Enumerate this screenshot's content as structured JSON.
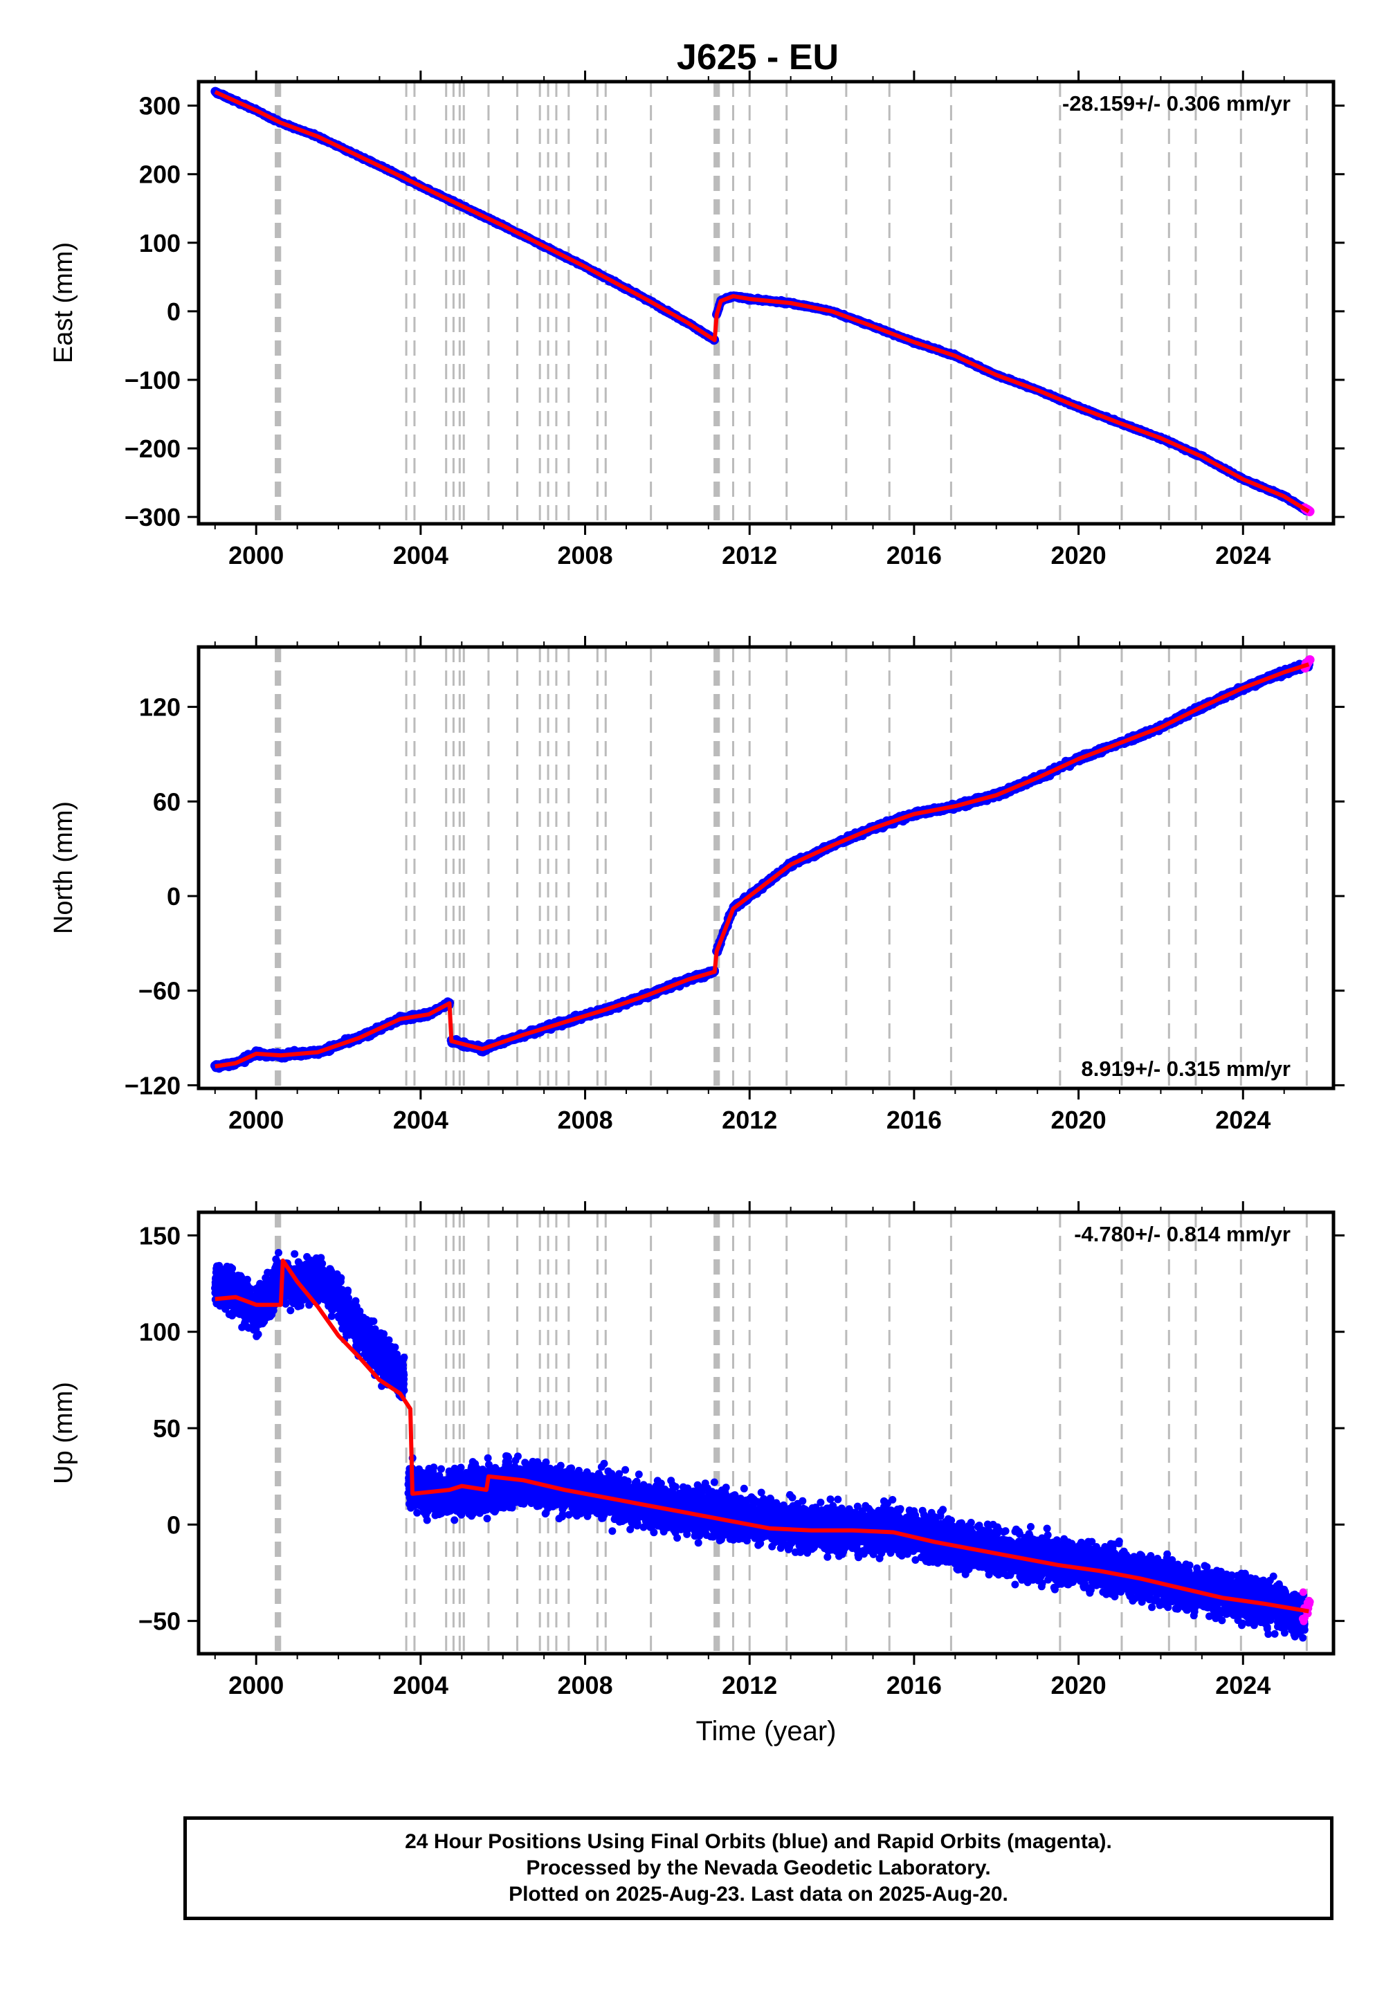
{
  "title": "J625 - EU",
  "footer": {
    "line1": "24 Hour Positions Using Final Orbits (blue) and Rapid Orbits (magenta).",
    "line2": "Processed by the Nevada Geodetic Laboratory.",
    "line3": "Plotted on 2025-Aug-23. Last data on 2025-Aug-20."
  },
  "colors": {
    "final_orbits": "#0000ff",
    "rapid_orbits": "#ff00ff",
    "model": "#ff0000",
    "event_lines": "#bbbbbb"
  },
  "chart_data": [
    {
      "type": "scatter",
      "ylabel": "East (mm)",
      "xlabel": "",
      "rate_label": "-28.159+/- 0.306 mm/yr",
      "rate_position": "top-right",
      "xlim": [
        1998.6,
        2026.2
      ],
      "ylim": [
        -310,
        335
      ],
      "x_ticks": [
        2000,
        2004,
        2008,
        2012,
        2016,
        2020,
        2024
      ],
      "y_ticks": [
        300,
        200,
        100,
        0,
        -100,
        -200,
        -300
      ],
      "y_tick_labels": [
        "300",
        "200",
        "100",
        "0",
        "−100",
        "−200",
        "−300"
      ],
      "series": [
        {
          "role": "final",
          "x": [
            1999.0,
            2000.0,
            2000.6,
            2001.5,
            2003.0,
            2004.5,
            2006.0,
            2008.0,
            2009.5,
            2010.5,
            2011.15
          ],
          "y": [
            320,
            293,
            275,
            255,
            212,
            168,
            125,
            65,
            17,
            -17,
            -42
          ]
        },
        {
          "role": "final",
          "x": [
            2011.2,
            2011.3,
            2011.6,
            2012.0,
            2013.0,
            2014.0,
            2015.0,
            2016.0,
            2017.0,
            2018.0,
            2019.0,
            2020.0,
            2021.0,
            2022.0,
            2023.0,
            2024.0,
            2025.0,
            2025.6
          ],
          "y": [
            -5,
            15,
            22,
            18,
            12,
            0,
            -22,
            -45,
            -65,
            -93,
            -115,
            -140,
            -163,
            -185,
            -212,
            -245,
            -270,
            -292
          ]
        }
      ],
      "rapid": {
        "x": [
          2025.5,
          2025.63
        ],
        "y": [
          -287,
          -292
        ]
      }
    },
    {
      "type": "scatter",
      "ylabel": "North (mm)",
      "xlabel": "",
      "rate_label": "8.919+/- 0.315 mm/yr",
      "rate_position": "bottom-right",
      "xlim": [
        1998.6,
        2026.2
      ],
      "ylim": [
        -122,
        158
      ],
      "x_ticks": [
        2000,
        2004,
        2008,
        2012,
        2016,
        2020,
        2024
      ],
      "y_ticks": [
        120,
        60,
        0,
        -60,
        -120
      ],
      "y_tick_labels": [
        "120",
        "60",
        "0",
        "−60",
        "−120"
      ],
      "series": [
        {
          "role": "final",
          "x": [
            1999.0,
            1999.5,
            2000.0,
            2000.6,
            2001.5,
            2002.5,
            2003.5,
            2004.2,
            2004.7
          ],
          "y": [
            -108,
            -106,
            -100,
            -101,
            -99,
            -90,
            -78,
            -75,
            -68
          ]
        },
        {
          "role": "final",
          "x": [
            2004.75,
            2005.5,
            2006.5,
            2007.5,
            2008.5,
            2009.5,
            2010.5,
            2011.15
          ],
          "y": [
            -92,
            -97,
            -88,
            -80,
            -72,
            -63,
            -53,
            -48
          ]
        },
        {
          "role": "final",
          "x": [
            2011.2,
            2011.6,
            2012.0,
            2013.0,
            2014.0,
            2015.0,
            2016.0,
            2017.0,
            2018.0,
            2019.0,
            2020.0,
            2021.0,
            2022.0,
            2023.0,
            2024.0,
            2025.0,
            2025.6
          ],
          "y": [
            -35,
            -8,
            0,
            20,
            32,
            43,
            52,
            57,
            64,
            75,
            87,
            97,
            107,
            120,
            132,
            142,
            147
          ]
        }
      ],
      "rapid": {
        "x": [
          2025.5,
          2025.63
        ],
        "y": [
          145,
          150
        ]
      }
    },
    {
      "type": "scatter",
      "ylabel": "Up (mm)",
      "xlabel": "Time (year)",
      "rate_label": "-4.780+/- 0.814 mm/yr",
      "rate_position": "top-right",
      "xlim": [
        1998.6,
        2026.2
      ],
      "ylim": [
        -67,
        162
      ],
      "x_ticks": [
        2000,
        2004,
        2008,
        2012,
        2016,
        2020,
        2024
      ],
      "y_ticks": [
        150,
        100,
        50,
        0,
        -50
      ],
      "y_tick_labels": [
        "150",
        "100",
        "50",
        "0",
        "−50"
      ],
      "scatter_spread": 11,
      "series": [
        {
          "role": "final",
          "x": [
            1999.0,
            1999.5,
            2000.0,
            2000.6,
            2001.0,
            2001.5,
            2002.0,
            2002.5,
            2003.0,
            2003.6
          ],
          "y": [
            125,
            120,
            110,
            128,
            125,
            128,
            118,
            100,
            88,
            75
          ]
        },
        {
          "role": "final",
          "x": [
            2003.7,
            2004.5,
            2005.5,
            2006.5,
            2007.5,
            2008.5,
            2009.5,
            2010.5,
            2011.5,
            2012.5,
            2013.5,
            2014.5,
            2015.5,
            2016.5,
            2017.5,
            2018.5,
            2019.5,
            2020.5,
            2021.5,
            2022.5,
            2023.5,
            2024.5,
            2025.5
          ],
          "y": [
            20,
            15,
            18,
            22,
            18,
            15,
            10,
            8,
            5,
            2,
            -2,
            -3,
            -3,
            -8,
            -12,
            -16,
            -20,
            -22,
            -27,
            -32,
            -36,
            -40,
            -48
          ]
        }
      ],
      "model": {
        "x": [
          1999.0,
          1999.5,
          2000.0,
          2000.6,
          2000.65,
          2001.0,
          2001.5,
          2002.0,
          2002.5,
          2003.0,
          2003.5,
          2003.75,
          2003.8,
          2004.7,
          2005.0,
          2005.6,
          2005.65,
          2006.5,
          2007.5,
          2008.5,
          2009.5,
          2010.5,
          2011.5,
          2012.5,
          2013.5,
          2014.5,
          2015.5,
          2016.5,
          2017.5,
          2018.5,
          2019.5,
          2020.5,
          2021.5,
          2022.5,
          2023.5,
          2024.5,
          2025.6
        ],
        "y": [
          117,
          118,
          114,
          114,
          137,
          126,
          113,
          98,
          87,
          75,
          68,
          60,
          16,
          18,
          20,
          18,
          25,
          23,
          18,
          14,
          10,
          6,
          2,
          -2,
          -3,
          -3,
          -4,
          -9,
          -13,
          -17,
          -21,
          -24,
          -28,
          -33,
          -38,
          -41,
          -45
        ]
      },
      "rapid": {
        "x": [
          2025.45,
          2025.63
        ],
        "y": [
          -48,
          -43
        ]
      }
    }
  ],
  "event_lines": [
    2000.48,
    2000.58,
    2003.65,
    2003.85,
    2004.62,
    2004.8,
    2004.95,
    2005.05,
    2005.65,
    2006.35,
    2006.9,
    2007.1,
    2007.3,
    2007.6,
    2008.3,
    2008.5,
    2009.6,
    2011.15,
    2011.25,
    2011.6,
    2012.0,
    2012.9,
    2014.35,
    2015.4,
    2016.9,
    2019.55,
    2021.05,
    2022.2,
    2022.85,
    2023.95,
    2025.55
  ],
  "thick_event_lines": [
    2000.53,
    2011.2
  ]
}
